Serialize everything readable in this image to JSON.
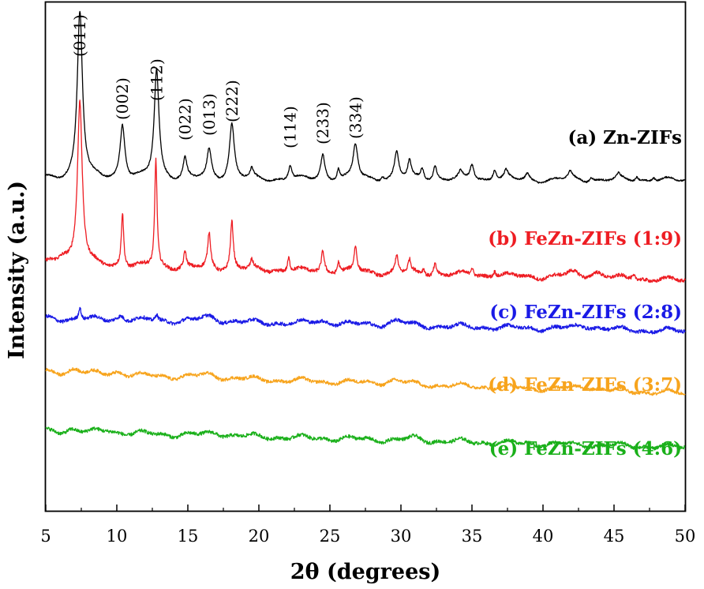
{
  "chart_data": {
    "type": "line",
    "title": "",
    "xlabel": "2θ (degrees)",
    "ylabel": "Intensity (a.u.)",
    "xlim": [
      5,
      50
    ],
    "xticks": [
      5,
      10,
      15,
      20,
      25,
      30,
      35,
      40,
      45,
      50
    ],
    "yticks": [],
    "series": [
      {
        "name": "(a) Zn-ZIFs",
        "color": "#000000",
        "baseline_start": 0.88,
        "baseline_end": 0.8,
        "noise": 0.1,
        "peaks": [
          {
            "x": 7.4,
            "h": 10.6,
            "w": 0.22
          },
          {
            "x": 10.4,
            "h": 3.4,
            "w": 0.2
          },
          {
            "x": 12.8,
            "h": 6.9,
            "w": 0.2
          },
          {
            "x": 14.8,
            "h": 1.3,
            "w": 0.15
          },
          {
            "x": 16.5,
            "h": 1.8,
            "w": 0.18
          },
          {
            "x": 18.1,
            "h": 3.5,
            "w": 0.2
          },
          {
            "x": 19.5,
            "h": 0.55,
            "w": 0.12
          },
          {
            "x": 22.2,
            "h": 0.9,
            "w": 0.15
          },
          {
            "x": 24.5,
            "h": 1.6,
            "w": 0.17
          },
          {
            "x": 25.6,
            "h": 0.7,
            "w": 0.12
          },
          {
            "x": 26.8,
            "h": 2.2,
            "w": 0.2
          },
          {
            "x": 28.7,
            "h": 0.3,
            "w": 0.12
          },
          {
            "x": 29.7,
            "h": 1.7,
            "w": 0.18
          },
          {
            "x": 30.6,
            "h": 1.1,
            "w": 0.15
          },
          {
            "x": 31.5,
            "h": 0.7,
            "w": 0.15
          },
          {
            "x": 32.4,
            "h": 0.9,
            "w": 0.15
          },
          {
            "x": 34.2,
            "h": 0.4,
            "w": 0.15
          },
          {
            "x": 35.0,
            "h": 1.0,
            "w": 0.17
          },
          {
            "x": 36.6,
            "h": 0.7,
            "w": 0.17
          },
          {
            "x": 37.4,
            "h": 0.5,
            "w": 0.15
          },
          {
            "x": 38.9,
            "h": 0.4,
            "w": 0.15
          },
          {
            "x": 41.9,
            "h": 0.5,
            "w": 0.18
          },
          {
            "x": 43.4,
            "h": 0.3,
            "w": 0.15
          },
          {
            "x": 45.3,
            "h": 0.3,
            "w": 0.15
          },
          {
            "x": 46.6,
            "h": 0.3,
            "w": 0.15
          },
          {
            "x": 47.8,
            "h": 0.25,
            "w": 0.15
          }
        ]
      },
      {
        "name": "(b) FeZn-ZIFs (1:9)",
        "color": "#ee1d23",
        "baseline_start": -4.5,
        "baseline_end": -5.5,
        "noise": 0.22,
        "peaks": [
          {
            "x": 6.2,
            "h": 0.6,
            "w": 0.5
          },
          {
            "x": 7.4,
            "h": 10.3,
            "w": 0.2
          },
          {
            "x": 10.4,
            "h": 3.4,
            "w": 0.1
          },
          {
            "x": 12.75,
            "h": 6.8,
            "w": 0.1
          },
          {
            "x": 14.8,
            "h": 1.0,
            "w": 0.1
          },
          {
            "x": 16.5,
            "h": 2.2,
            "w": 0.12
          },
          {
            "x": 18.1,
            "h": 3.0,
            "w": 0.12
          },
          {
            "x": 19.5,
            "h": 0.5,
            "w": 0.1
          },
          {
            "x": 22.1,
            "h": 0.9,
            "w": 0.1
          },
          {
            "x": 24.5,
            "h": 1.3,
            "w": 0.12
          },
          {
            "x": 25.6,
            "h": 0.7,
            "w": 0.1
          },
          {
            "x": 26.8,
            "h": 1.6,
            "w": 0.12
          },
          {
            "x": 29.7,
            "h": 1.1,
            "w": 0.12
          },
          {
            "x": 30.6,
            "h": 0.8,
            "w": 0.12
          },
          {
            "x": 31.6,
            "h": 0.4,
            "w": 0.1
          },
          {
            "x": 32.4,
            "h": 0.7,
            "w": 0.12
          },
          {
            "x": 35.0,
            "h": 0.5,
            "w": 0.12
          },
          {
            "x": 36.6,
            "h": 0.4,
            "w": 0.12
          },
          {
            "x": 42.0,
            "h": 0.3,
            "w": 0.5
          },
          {
            "x": 43.7,
            "h": 0.4,
            "w": 0.5
          },
          {
            "x": 46.4,
            "h": 0.3,
            "w": 0.2
          }
        ]
      },
      {
        "name": "(c) FeZn-ZIFs (2:8)",
        "color": "#1a1ae6",
        "baseline_start": -7.9,
        "baseline_end": -8.7,
        "noise": 0.22,
        "peaks": [
          {
            "x": 7.4,
            "h": 0.8,
            "w": 0.1
          },
          {
            "x": 10.3,
            "h": 0.3,
            "w": 0.3
          },
          {
            "x": 12.8,
            "h": 0.4,
            "w": 0.1
          },
          {
            "x": 16.5,
            "h": 0.3,
            "w": 0.8
          },
          {
            "x": 24.5,
            "h": 0.2,
            "w": 0.8
          },
          {
            "x": 29.7,
            "h": 0.3,
            "w": 0.6
          },
          {
            "x": 43.0,
            "h": 0.25,
            "w": 0.8
          }
        ]
      },
      {
        "name": "(d) FeZn-ZIFs (3:7)",
        "color": "#f7a41d",
        "baseline_start": -11.3,
        "baseline_end": -12.6,
        "noise": 0.2,
        "peaks": [
          {
            "x": 7.0,
            "h": 0.3,
            "w": 0.5
          },
          {
            "x": 10.0,
            "h": 0.2,
            "w": 0.5
          },
          {
            "x": 16.5,
            "h": 0.2,
            "w": 0.8
          },
          {
            "x": 29.5,
            "h": 0.2,
            "w": 0.8
          },
          {
            "x": 43.0,
            "h": 0.25,
            "w": 0.8
          }
        ]
      },
      {
        "name": "(e) FeZn-ZIFs (4:6)",
        "color": "#1ab01a",
        "baseline_start": -15.0,
        "baseline_end": -16.0,
        "noise": 0.22,
        "peaks": [
          {
            "x": 6.8,
            "h": 0.2,
            "w": 0.5
          },
          {
            "x": 9.4,
            "h": 0.2,
            "w": 0.5
          },
          {
            "x": 17.0,
            "h": 0.2,
            "w": 0.6
          },
          {
            "x": 31.0,
            "h": 0.15,
            "w": 0.6
          }
        ]
      }
    ],
    "annotations": [
      {
        "text": "(011)",
        "x": 7.4
      },
      {
        "text": "(002)",
        "x": 10.4
      },
      {
        "text": "(112)",
        "x": 12.8
      },
      {
        "text": "(022)",
        "x": 14.8
      },
      {
        "text": "(013)",
        "x": 16.5
      },
      {
        "text": "(222)",
        "x": 18.1
      },
      {
        "text": "(114)",
        "x": 22.2
      },
      {
        "text": "(233)",
        "x": 24.5
      },
      {
        "text": "(334)",
        "x": 26.8
      }
    ]
  }
}
